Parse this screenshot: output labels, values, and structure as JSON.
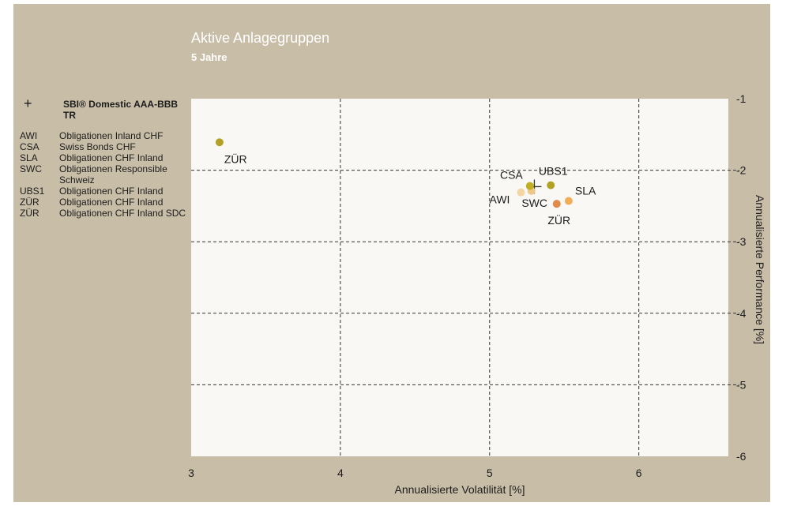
{
  "header": {
    "title": "Aktive Anlagegruppen",
    "subtitle": "5 Jahre"
  },
  "legend": {
    "reference": {
      "symbol": "+",
      "label": "SBI® Domestic AAA-BBB TR"
    },
    "items": [
      {
        "code": "AWI",
        "label": "Obligationen Inland CHF"
      },
      {
        "code": "CSA",
        "label": "Swiss Bonds CHF"
      },
      {
        "code": "SLA",
        "label": "Obligationen CHF Inland"
      },
      {
        "code": "SWC",
        "label": "Obligationen Responsible Schweiz"
      },
      {
        "code": "UBS1",
        "label": "Obligationen CHF Inland"
      },
      {
        "code": "ZÜR",
        "label": "Obligationen CHF Inland"
      },
      {
        "code": "ZÜR",
        "label": "Obligationen CHF Inland SDC"
      }
    ]
  },
  "chart_data": {
    "type": "scatter",
    "xlabel": "Annualisierte Volatilität [%]",
    "ylabel": "Annualisierte Performance [%]",
    "xlim": [
      3,
      6.6
    ],
    "ylim": [
      -6,
      -1
    ],
    "xticks": [
      3,
      4,
      5,
      6
    ],
    "yticks": [
      -1,
      -2,
      -3,
      -4,
      -5,
      -6
    ],
    "grid": true,
    "y_axis_side": "right",
    "points": [
      {
        "label": "ZÜR",
        "x": 3.19,
        "y": -1.61,
        "color": "#b3a126"
      },
      {
        "label": "CSA",
        "x": 5.27,
        "y": -2.22,
        "color": "#c0b022"
      },
      {
        "label": "UBS1",
        "x": 5.41,
        "y": -2.21,
        "color": "#b3a126"
      },
      {
        "label": "SLA",
        "x": 5.53,
        "y": -2.43,
        "color": "#f2ad58"
      },
      {
        "label": "AWI",
        "x": 5.21,
        "y": -2.31,
        "color": "#f3d6a4"
      },
      {
        "label": "SWC",
        "x": 5.28,
        "y": -2.29,
        "color": "#eec88a"
      },
      {
        "label": "ZÜR",
        "x": 5.45,
        "y": -2.47,
        "color": "#e08a4c"
      }
    ],
    "benchmark": {
      "label": "SBI® Domestic AAA-BBB TR",
      "symbol": "+",
      "x": 5.3,
      "y": -2.23
    }
  }
}
